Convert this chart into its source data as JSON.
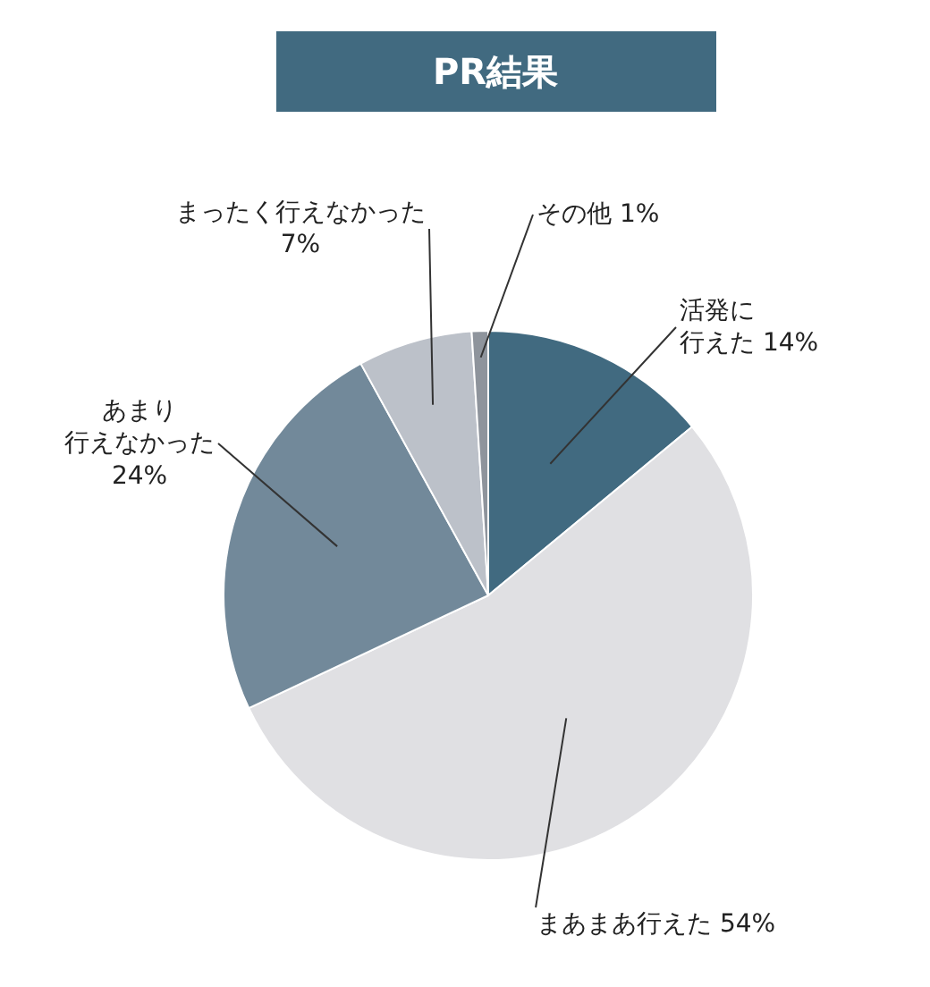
{
  "chart_data": {
    "type": "pie",
    "title": "PR結果",
    "categories": [
      "活発に行えた",
      "まあまあ行えた",
      "あまり行えなかった",
      "まったく行えなかった",
      "その他"
    ],
    "values": [
      14,
      54,
      24,
      7,
      1
    ],
    "value_labels": [
      "14%",
      "54%",
      "24%",
      "7%",
      "1%"
    ],
    "colors": [
      "#416a80",
      "#e0e0e3",
      "#72899a",
      "#bcc1c9",
      "#8e949c"
    ],
    "legend": false
  }
}
